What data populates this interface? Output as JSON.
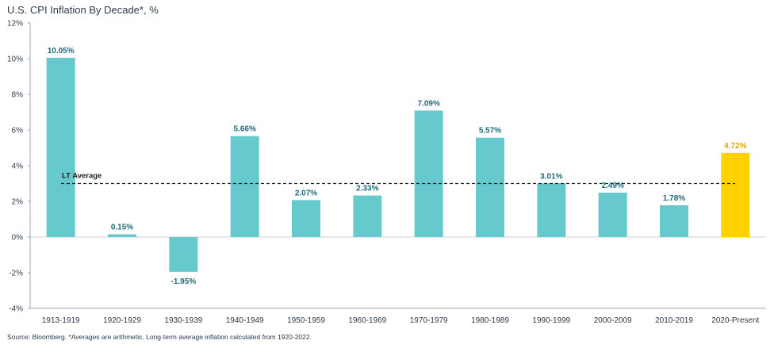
{
  "chart_data": {
    "type": "bar",
    "title": "U.S. CPI Inflation By Decade*, %",
    "source": "Source: Bloomberg. *Averages are arithmetic. Long-term average inflation calculated from 1920-2022.",
    "categories": [
      "1913-1919",
      "1920-1929",
      "1930-1939",
      "1940-1949",
      "1950-1959",
      "1960-1969",
      "1970-1979",
      "1980-1989",
      "1990-1999",
      "2000-2009",
      "2010-2019",
      "2020-Present"
    ],
    "values": [
      10.05,
      0.15,
      -1.95,
      5.66,
      2.07,
      2.33,
      7.09,
      5.57,
      3.01,
      2.49,
      1.78,
      4.72
    ],
    "data_labels": [
      "10.05%",
      "0.15%",
      "-1.95%",
      "5.66%",
      "2.07%",
      "2.33%",
      "7.09%",
      "5.57%",
      "3.01%",
      "2.49%",
      "1.78%",
      "4.72%"
    ],
    "y_ticks": [
      -4,
      -2,
      0,
      2,
      4,
      6,
      8,
      10,
      12
    ],
    "y_tick_labels": [
      "-4%",
      "-2%",
      "0%",
      "2%",
      "4%",
      "6%",
      "8%",
      "10%",
      "12%"
    ],
    "ylim": [
      -4,
      12
    ],
    "xlabel": "",
    "ylabel": "",
    "reference_line": {
      "label": "LT Average",
      "value": 3.0,
      "style": "dashed"
    },
    "grid": false,
    "colors": {
      "bar": "#66c9ce",
      "highlight_bar": "#ffd200",
      "label": "#1d6c7b",
      "highlight_label": "#d9a800",
      "axis": "#9aa6b2"
    },
    "highlight_index": 11
  }
}
